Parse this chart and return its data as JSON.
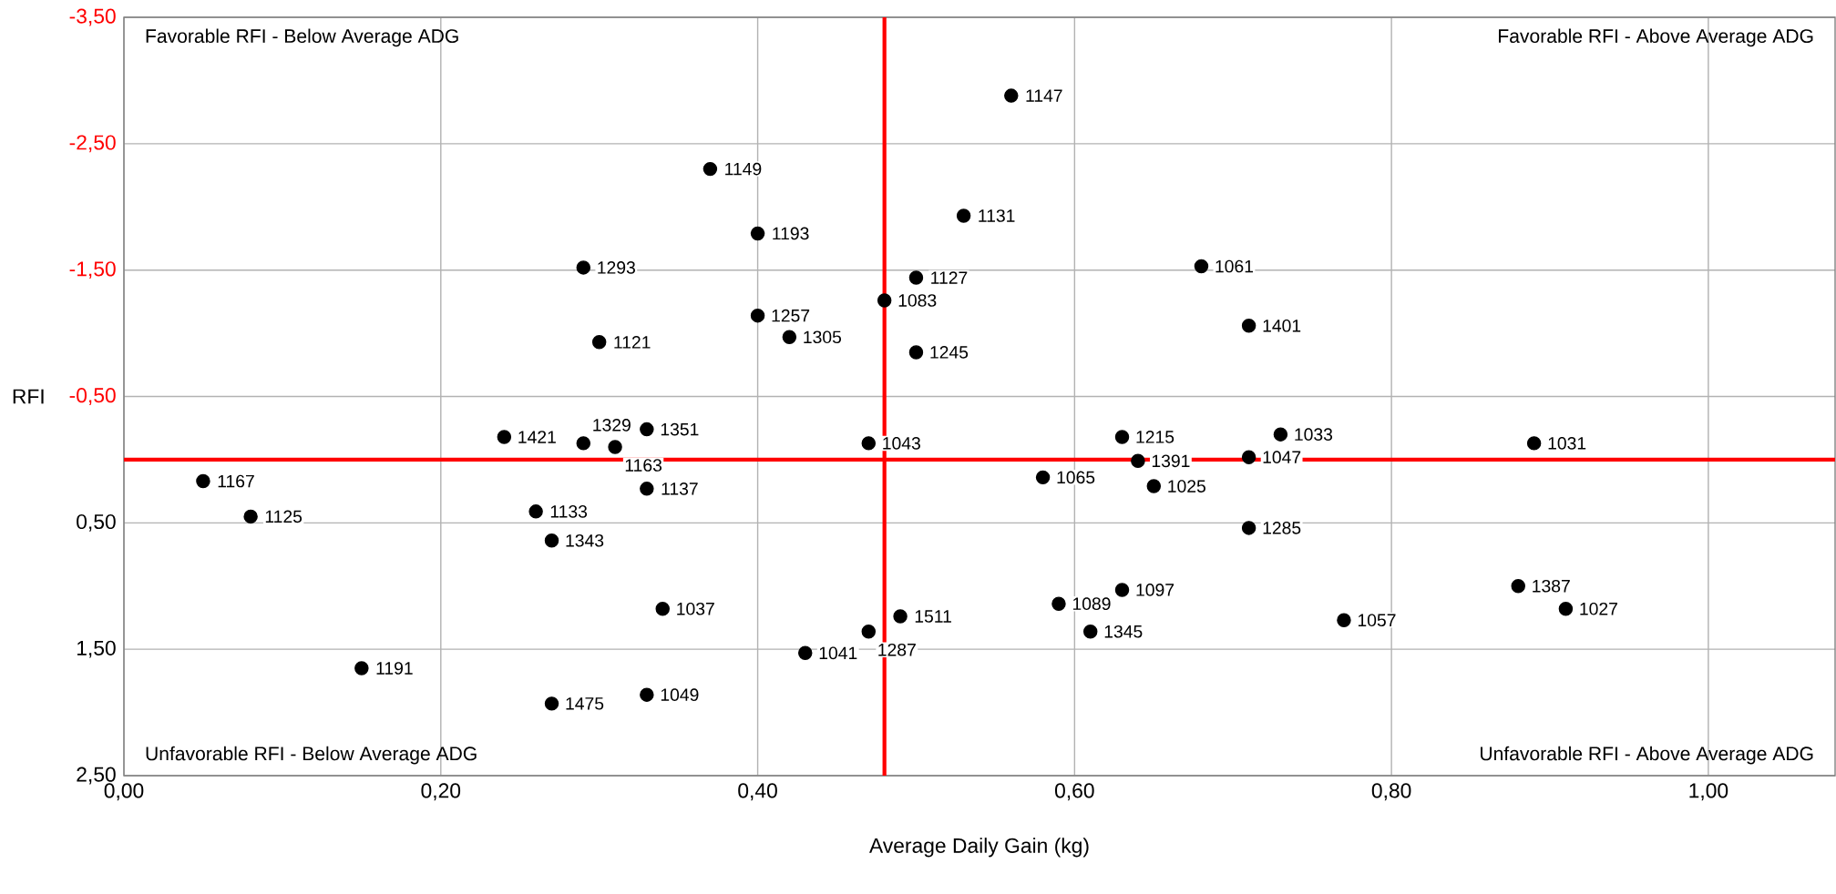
{
  "chart_data": {
    "type": "scatter",
    "xlabel": "Average Daily Gain (kg)",
    "ylabel": "RFI",
    "x": [
      0.56,
      0.37,
      0.4,
      0.53,
      0.29,
      0.5,
      0.68,
      0.48,
      0.4,
      0.42,
      0.3,
      0.71,
      0.5,
      0.33,
      0.24,
      0.29,
      0.31,
      0.47,
      0.63,
      0.73,
      0.89,
      0.64,
      0.71,
      0.05,
      0.58,
      0.65,
      0.33,
      0.26,
      0.08,
      0.27,
      0.71,
      0.88,
      0.63,
      0.91,
      0.59,
      0.34,
      0.49,
      0.77,
      0.47,
      0.61,
      0.43,
      0.15,
      0.33,
      0.27
    ],
    "marker": "circle",
    "series": [
      {
        "color": "#000000",
        "values": [
          -2.88,
          -2.3,
          -1.79,
          -1.93,
          -1.52,
          -1.44,
          -1.53,
          -1.26,
          -1.14,
          -0.97,
          -0.93,
          -1.06,
          -0.85,
          -0.24,
          -0.18,
          -0.13,
          -0.1,
          -0.13,
          -0.18,
          -0.2,
          -0.13,
          0.01,
          -0.02,
          0.17,
          0.14,
          0.21,
          0.23,
          0.41,
          0.45,
          0.64,
          0.54,
          1.0,
          1.03,
          1.18,
          1.14,
          1.18,
          1.24,
          1.27,
          1.36,
          1.36,
          1.53,
          1.65,
          1.86,
          1.93
        ]
      }
    ],
    "xlim": [
      0,
      1.08
    ],
    "ylim": [
      2.5,
      -3.5
    ],
    "xticks": [
      {
        "value": 0,
        "label": "0,00"
      },
      {
        "value": 0.2,
        "label": "0,20"
      },
      {
        "value": 0.4,
        "label": "0,40"
      },
      {
        "value": 0.6,
        "label": "0,60"
      },
      {
        "value": 0.8,
        "label": "0,80"
      },
      {
        "value": 1.0,
        "label": "1,00"
      }
    ],
    "yticks": [
      {
        "value": -3.5,
        "label": "-3,50"
      },
      {
        "value": -2.5,
        "label": "-2,50"
      },
      {
        "value": -1.5,
        "label": "-1,50"
      },
      {
        "value": -0.5,
        "label": "-0,50"
      },
      {
        "value": 0.5,
        "label": "0,50"
      },
      {
        "value": 1.5,
        "label": "1,50"
      },
      {
        "value": 2.5,
        "label": "2,50"
      }
    ],
    "ref_lines": [
      {
        "axis": "x",
        "value": 0.48,
        "color": "#ff0000"
      },
      {
        "axis": "y",
        "value": 0,
        "color": "#ff0000"
      }
    ],
    "annotations": [
      "Favorable RFI - Below Average ADG",
      "Favorable RFI - Above Average ADG",
      "Unfavorable RFI - Below Average ADG",
      "Unfavorable RFI - Above Average ADG",
      {
        "text": "1147",
        "x": 0.56,
        "y": -2.88
      },
      {
        "text": "1149",
        "x": 0.37,
        "y": -2.3
      },
      {
        "text": "1193",
        "x": 0.4,
        "y": -1.79
      },
      {
        "text": "1131",
        "x": 0.53,
        "y": -1.93
      },
      {
        "text": "1293",
        "x": 0.29,
        "y": -1.52
      },
      {
        "text": "1127",
        "x": 0.5,
        "y": -1.44
      },
      {
        "text": "1061",
        "x": 0.68,
        "y": -1.53
      },
      {
        "text": "1083",
        "x": 0.48,
        "y": -1.26
      },
      {
        "text": "1257",
        "x": 0.4,
        "y": -1.14
      },
      {
        "text": "1305",
        "x": 0.42,
        "y": -0.97
      },
      {
        "text": "1121",
        "x": 0.3,
        "y": -0.93
      },
      {
        "text": "1401",
        "x": 0.71,
        "y": -1.06
      },
      {
        "text": "1245",
        "x": 0.5,
        "y": -0.85
      },
      {
        "text": "1351",
        "x": 0.33,
        "y": -0.24
      },
      {
        "text": "1421",
        "x": 0.24,
        "y": -0.18
      },
      {
        "text": "1329",
        "x": 0.29,
        "y": -0.13
      },
      {
        "text": "1163",
        "x": 0.31,
        "y": -0.1
      },
      {
        "text": "1043",
        "x": 0.47,
        "y": -0.13
      },
      {
        "text": "1215",
        "x": 0.63,
        "y": -0.18
      },
      {
        "text": "1033",
        "x": 0.73,
        "y": -0.2
      },
      {
        "text": "1031",
        "x": 0.89,
        "y": -0.13
      },
      {
        "text": "1391",
        "x": 0.64,
        "y": 0.01
      },
      {
        "text": "1047",
        "x": 0.71,
        "y": -0.02
      },
      {
        "text": "1167",
        "x": 0.05,
        "y": 0.17
      },
      {
        "text": "1065",
        "x": 0.58,
        "y": 0.14
      },
      {
        "text": "1025",
        "x": 0.65,
        "y": 0.21
      },
      {
        "text": "1137",
        "x": 0.33,
        "y": 0.23
      },
      {
        "text": "1133",
        "x": 0.26,
        "y": 0.41
      },
      {
        "text": "1125",
        "x": 0.08,
        "y": 0.45
      },
      {
        "text": "1343",
        "x": 0.27,
        "y": 0.64
      },
      {
        "text": "1285",
        "x": 0.71,
        "y": 0.54
      },
      {
        "text": "1387",
        "x": 0.88,
        "y": 1.0
      },
      {
        "text": "1097",
        "x": 0.63,
        "y": 1.03
      },
      {
        "text": "1027",
        "x": 0.91,
        "y": 1.18
      },
      {
        "text": "1089",
        "x": 0.59,
        "y": 1.14
      },
      {
        "text": "1037",
        "x": 0.34,
        "y": 1.18
      },
      {
        "text": "1511",
        "x": 0.49,
        "y": 1.24
      },
      {
        "text": "1057",
        "x": 0.77,
        "y": 1.27
      },
      {
        "text": "1287",
        "x": 0.47,
        "y": 1.36
      },
      {
        "text": "1345",
        "x": 0.61,
        "y": 1.36
      },
      {
        "text": "1041",
        "x": 0.43,
        "y": 1.53
      },
      {
        "text": "1191",
        "x": 0.15,
        "y": 1.65
      },
      {
        "text": "1049",
        "x": 0.33,
        "y": 1.86
      },
      {
        "text": "1475",
        "x": 0.27,
        "y": 1.93
      }
    ],
    "grid": true
  }
}
